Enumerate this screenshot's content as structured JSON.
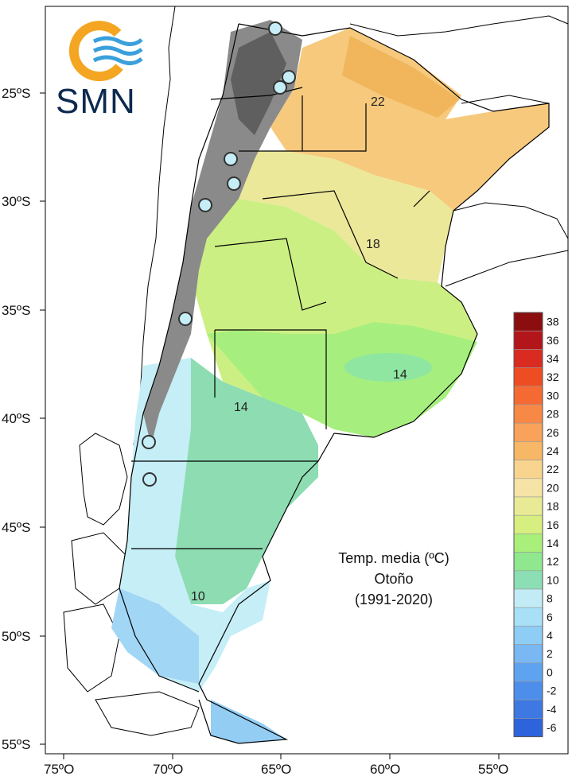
{
  "logo": {
    "text": "SMN",
    "ring_color": "#f4a623",
    "wave_color": "#3aa0dc"
  },
  "title": {
    "line1": "Temp. media (ºC)",
    "line2": "Otoño",
    "line3": "(1991-2020)"
  },
  "lat_ticks": [
    "25ºS",
    "30ºS",
    "35ºS",
    "40ºS",
    "45ºS",
    "50ºS",
    "55ºS"
  ],
  "lon_ticks": [
    "75ºO",
    "70ºO",
    "65ºO",
    "60ºO",
    "55ºO"
  ],
  "isotherm_labels": [
    "22",
    "18",
    "14",
    "14",
    "10"
  ],
  "legend": {
    "labels": [
      "38",
      "36",
      "34",
      "32",
      "30",
      "28",
      "26",
      "24",
      "22",
      "20",
      "18",
      "16",
      "14",
      "12",
      "10",
      "8",
      "6",
      "4",
      "2",
      "0",
      "-2",
      "-4",
      "-6"
    ],
    "colors": [
      "#8b0d0d",
      "#b3161a",
      "#d92b1f",
      "#ee4d24",
      "#f56a32",
      "#f78846",
      "#f8a25b",
      "#f6b766",
      "#f8d48e",
      "#f5e4a6",
      "#e9ea95",
      "#d6ef80",
      "#a9f07a",
      "#8fe88e",
      "#8cdfb4",
      "#c2ecf5",
      "#a8e0f7",
      "#8ecdf5",
      "#79b8f2",
      "#5ea3ef",
      "#4d8eea",
      "#3d78e3",
      "#2d64dc"
    ]
  },
  "chart_data": {
    "type": "map",
    "variable": "Temp. media (ºC)",
    "season": "Otoño",
    "period": "(1991-2020)",
    "xlim": [
      -76,
      -54
    ],
    "ylim": [
      -56,
      -21.5
    ],
    "contours": [
      22,
      18,
      14,
      14,
      10
    ],
    "legend_levels": [
      38,
      36,
      34,
      32,
      30,
      28,
      26,
      24,
      22,
      20,
      18,
      16,
      14,
      12,
      10,
      8,
      6,
      4,
      2,
      0,
      -2,
      -4,
      -6
    ]
  }
}
